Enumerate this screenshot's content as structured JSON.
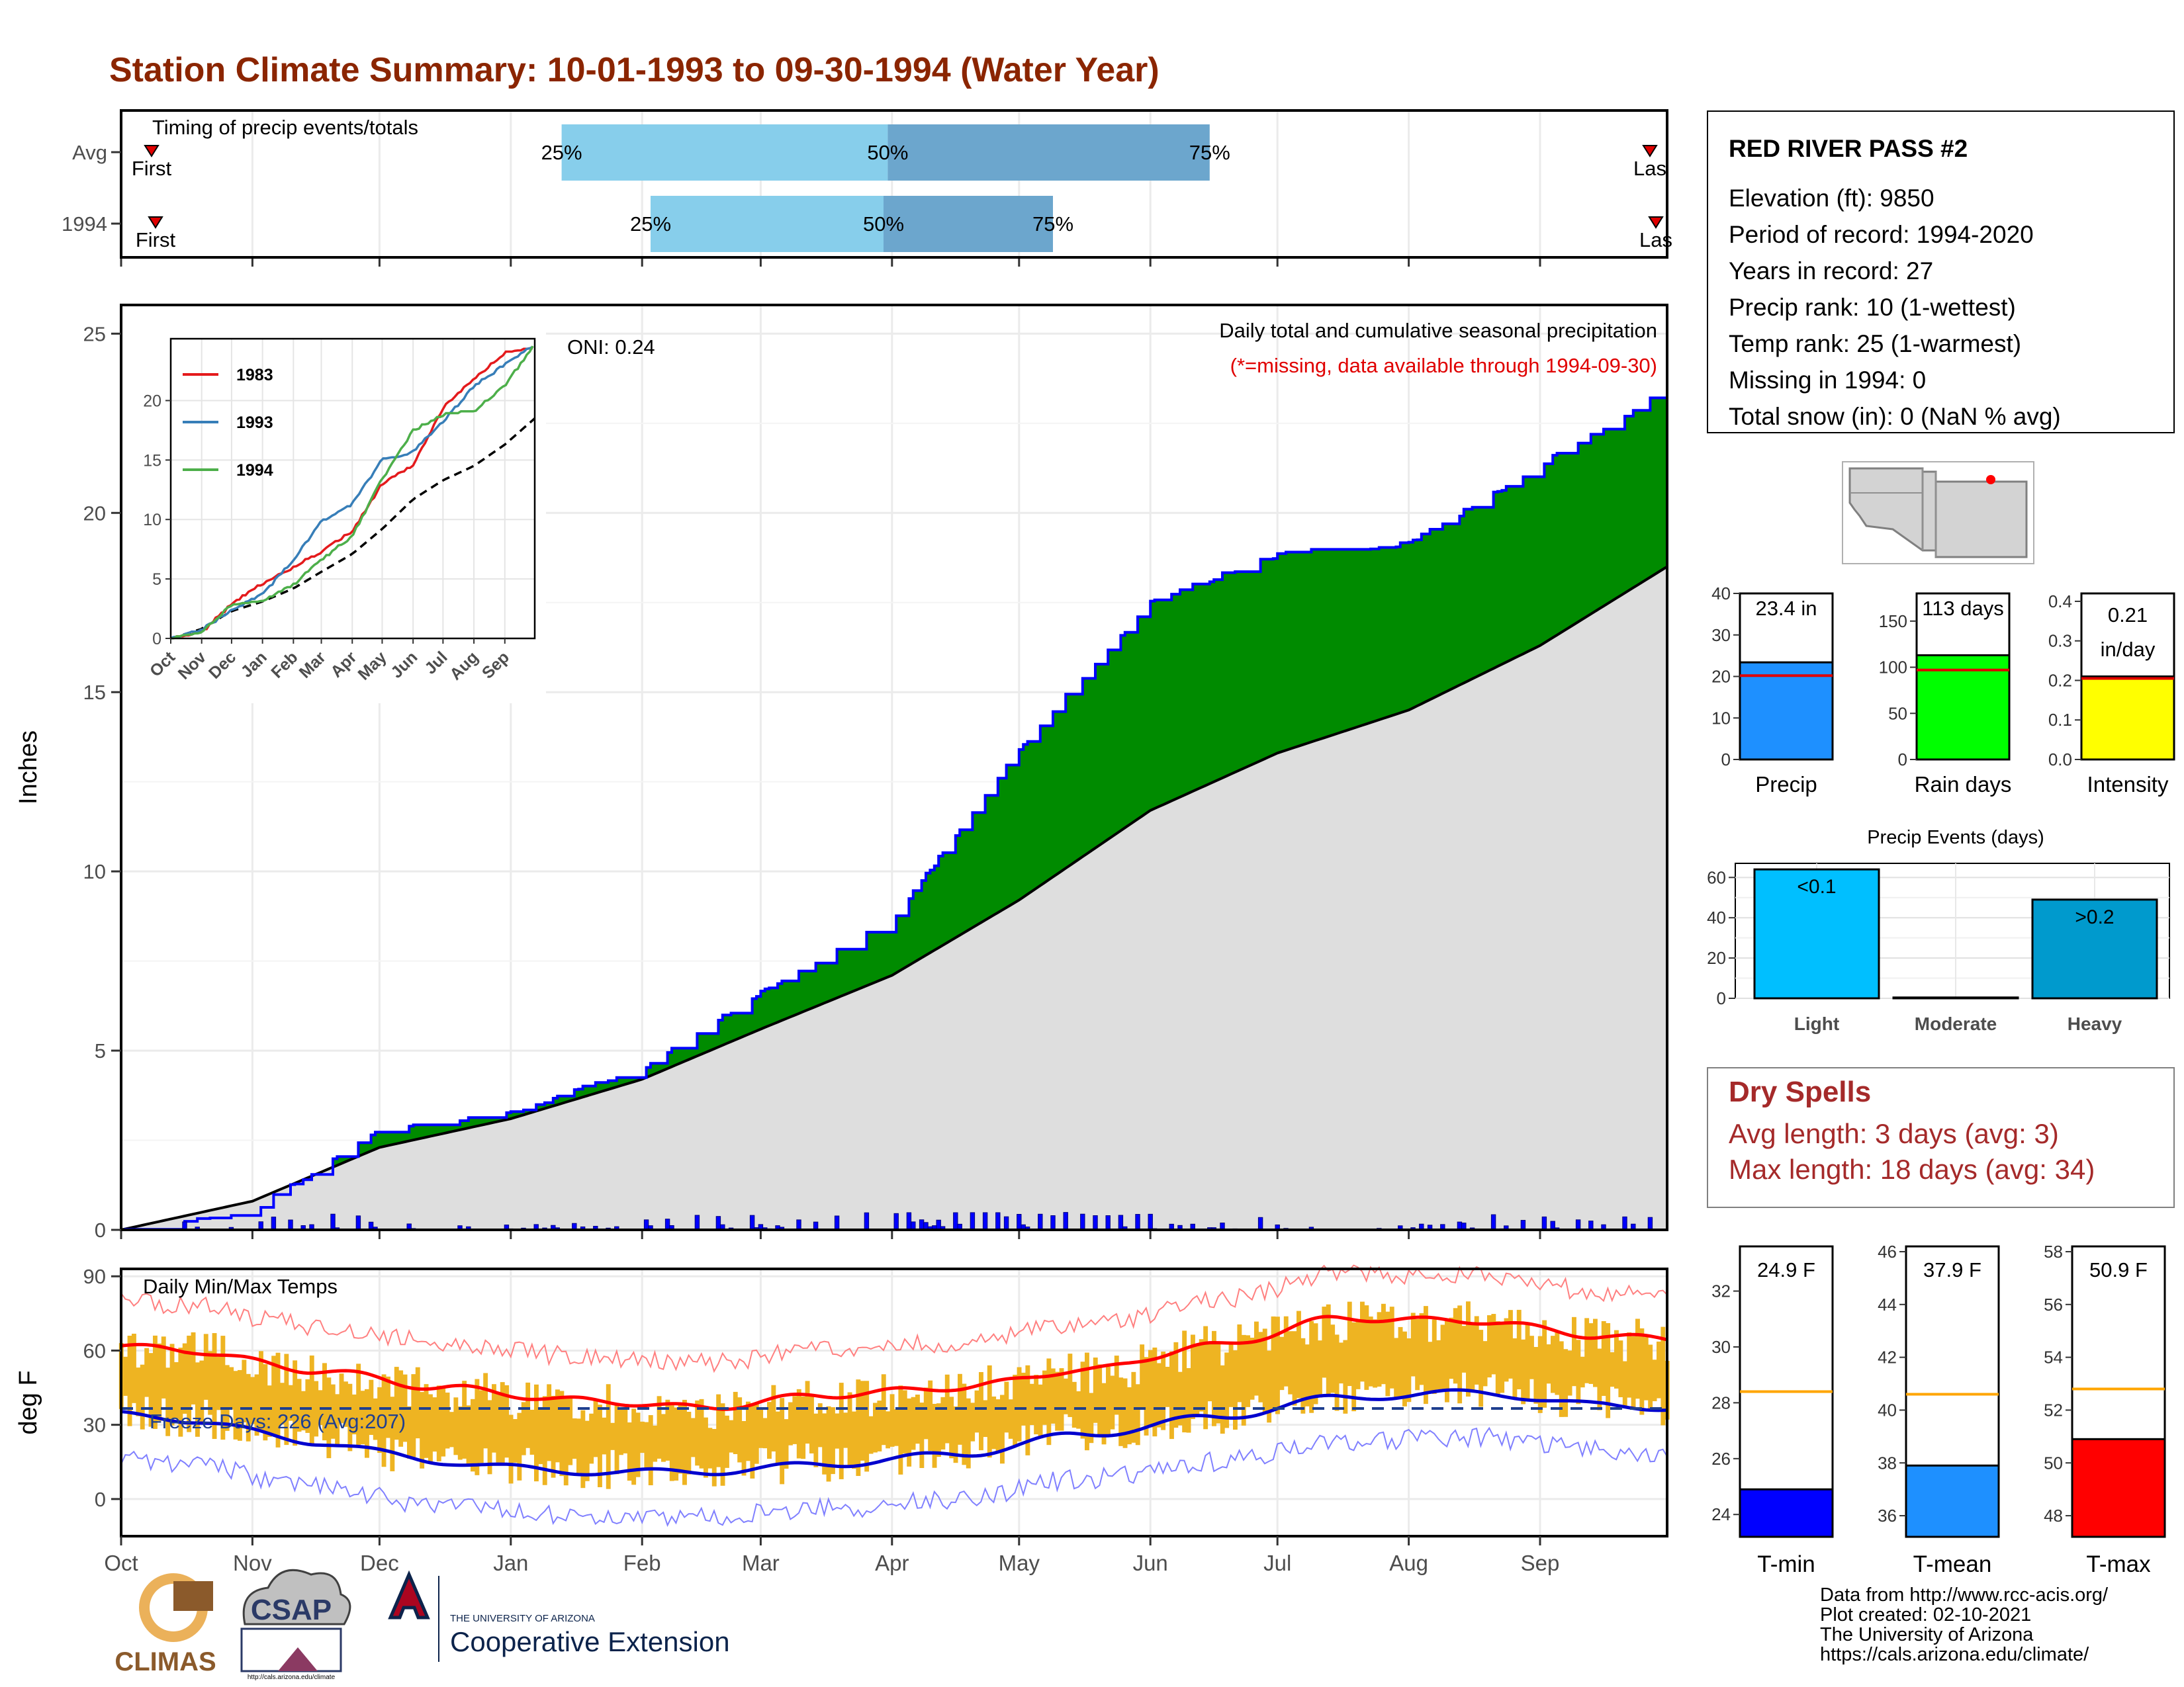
{
  "title": "Station Climate Summary: 10-01-1993 to 09-30-1994 (Water Year)",
  "colors": {
    "title": "#8B2500",
    "q_light": "#87CEEB",
    "q_dark": "#6CA6CD",
    "cum_obs_line": "#0000FF",
    "above_avg_fill": "#008B00",
    "below_avg_fill": "#8B5A00",
    "avg_fill": "#DEDEDE",
    "temp_bar": "#EEB422",
    "tmax_line": "#FF0000",
    "tmin_line": "#0000CD",
    "dry_spells": "#A52A2A"
  },
  "timing": {
    "title": "Timing of precip events/totals",
    "rows": [
      {
        "label": "Avg",
        "first": "First",
        "last": "Las",
        "q25": "25%",
        "q50": "50%",
        "q75": "75%",
        "q25_doy": 104,
        "q50_doy": 181,
        "q75_doy": 257
      },
      {
        "label": "1994",
        "first": "First",
        "last": "Las",
        "q25": "25%",
        "q50": "50%",
        "q75": "75%",
        "q25_doy": 125,
        "q50_doy": 180,
        "q75_doy": 220
      }
    ]
  },
  "precip_panel": {
    "ylabel": "Inches",
    "yticks": [
      "0",
      "5",
      "10",
      "15",
      "20",
      "25"
    ],
    "oni": "ONI: 0.24",
    "subtitle": "Daily total and cumulative seasonal precipitation",
    "missing_note": "(*=missing, data available through 1994-09-30)"
  },
  "inset": {
    "yticks": [
      "0",
      "5",
      "10",
      "15",
      "20"
    ],
    "xticks": [
      "Oct",
      "Nov",
      "Dec",
      "Jan",
      "Feb",
      "Mar",
      "Apr",
      "May",
      "Jun",
      "Jul",
      "Aug",
      "Sep"
    ],
    "legend": [
      {
        "name": "1983",
        "color": "#E41A1C"
      },
      {
        "name": "1993",
        "color": "#377EB8"
      },
      {
        "name": "1994",
        "color": "#4DAF4A"
      }
    ]
  },
  "temp_panel": {
    "ylabel": "deg F",
    "title": "Daily Min/Max Temps",
    "yticks": [
      "0",
      "30",
      "60",
      "90"
    ],
    "freeze_label": "Freeze Days: 226 (Avg:207)"
  },
  "months": [
    "Oct",
    "Nov",
    "Dec",
    "Jan",
    "Feb",
    "Mar",
    "Apr",
    "May",
    "Jun",
    "Jul",
    "Aug",
    "Sep"
  ],
  "station": {
    "name": "RED RIVER PASS #2",
    "lines": [
      "Elevation (ft): 9850",
      "Period of record: 1994-2020",
      "Years in record: 27",
      "Precip rank: 10 (1-wettest)",
      "Temp rank: 25 (1-warmest)",
      "Missing in 1994: 0",
      "Total snow (in): 0 (NaN % avg)"
    ]
  },
  "summary_bars": [
    {
      "label": "Precip",
      "value_label": "23.4 in",
      "value": 23.4,
      "avg": 20.2,
      "ymax": 40,
      "yticks": [
        "0",
        "10",
        "20",
        "30",
        "40"
      ],
      "color": "#1E90FF"
    },
    {
      "label": "Rain days",
      "value_label": "113 days",
      "value": 113,
      "avg": 97,
      "ymax": 180,
      "yticks": [
        "0",
        "50",
        "100",
        "150"
      ],
      "color": "#00FF00"
    },
    {
      "label": "Intensity",
      "value_label_1": "0.21",
      "value_label_2": "in/day",
      "value": 0.21,
      "avg": 0.205,
      "ymax": 0.42,
      "yticks": [
        "0.0",
        "0.1",
        "0.2",
        "0.3",
        "0.4"
      ],
      "color": "#FFFF00"
    }
  ],
  "events": {
    "title": "Precip Events (days)",
    "yticks": [
      "0",
      "20",
      "40",
      "60"
    ],
    "bars": [
      {
        "label": "Light",
        "value_label": "<0.1",
        "value": 64,
        "color": "#00BFFF"
      },
      {
        "label": "Moderate",
        "value_label": "",
        "value": 0.4,
        "color": "#1C86EE"
      },
      {
        "label": "Heavy",
        "value_label": ">0.2",
        "value": 49,
        "color": "#009ACD"
      }
    ]
  },
  "dry_spells": {
    "title": "Dry Spells",
    "avg": "Avg length: 3 days (avg: 3)",
    "max": "Max length: 18 days (avg: 34)"
  },
  "temp_bars": [
    {
      "label": "T-min",
      "value_label": "24.9 F",
      "value": 24.9,
      "avg": 28.4,
      "ymin": 23.2,
      "ymax": 33.6,
      "yticks": [
        24,
        26,
        28,
        30,
        32
      ],
      "color": "#0000FF"
    },
    {
      "label": "T-mean",
      "value_label": "37.9 F",
      "value": 37.9,
      "avg": 40.6,
      "ymin": 35.2,
      "ymax": 46.2,
      "yticks": [
        36,
        38,
        40,
        42,
        44,
        46
      ],
      "color": "#1E90FF"
    },
    {
      "label": "T-max",
      "value_label": "50.9 F",
      "value": 50.9,
      "avg": 52.8,
      "ymin": 47.2,
      "ymax": 58.2,
      "yticks": [
        48,
        50,
        52,
        54,
        56,
        58
      ],
      "color": "#FF0000"
    }
  ],
  "footer": {
    "lines": [
      "Data from http://www.rcc-acis.org/",
      "Plot created: 02-10-2021",
      "The University of Arizona",
      "https://cals.arizona.edu/climate/"
    ],
    "logos": {
      "climas": "CLIMAS",
      "csap": "CSAP",
      "ua_small": "THE UNIVERSITY OF ARIZONA",
      "ua_big": "Cooperative Extension"
    }
  },
  "chart_data": {
    "type": "area",
    "x": [
      "Oct",
      "Nov",
      "Dec",
      "Jan",
      "Feb",
      "Mar",
      "Apr",
      "May",
      "Jun",
      "Jul",
      "Aug",
      "Sep"
    ],
    "ylim": [
      0,
      25.8
    ],
    "series": [
      {
        "name": "1994",
        "values": [
          0.5,
          2.8,
          3.2,
          4.5,
          6.6,
          8.6,
          13.4,
          17.5,
          18.8,
          19.1,
          21.3,
          23.4
        ]
      },
      {
        "values": [
          0.8,
          2.3,
          3.1,
          4.2,
          5.6,
          7.1,
          9.2,
          11.7,
          13.3,
          14.5,
          16.3,
          18.5
        ]
      }
    ],
    "temp_ylim": [
      -15,
      93
    ],
    "tmax_avg": [
      60,
      52,
      45,
      40,
      37,
      42,
      45,
      52,
      62,
      73,
      72,
      66
    ],
    "tmin_avg": [
      32,
      23,
      15,
      11,
      11,
      14,
      18,
      26,
      33,
      41,
      43,
      38
    ]
  }
}
